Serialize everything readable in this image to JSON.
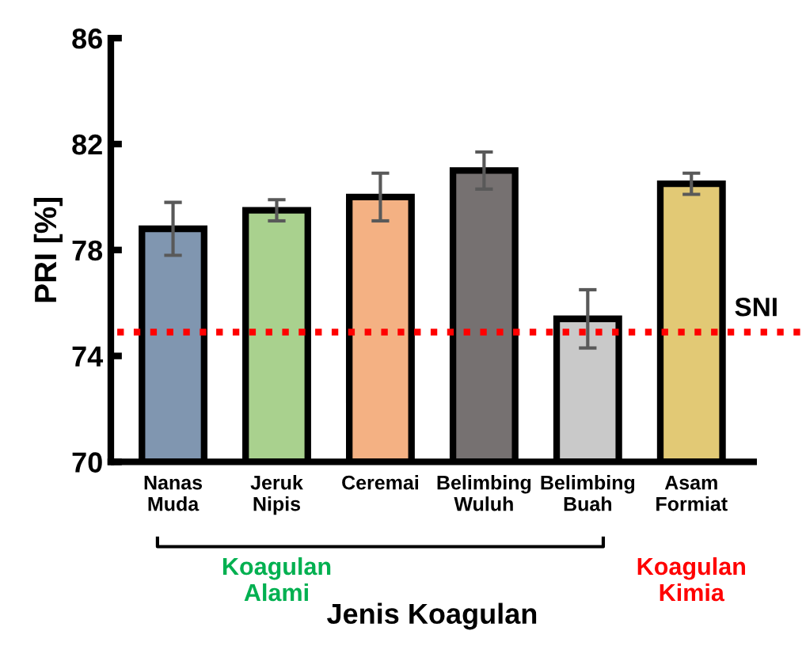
{
  "chart_data": {
    "type": "bar",
    "ylabel": "PRI [%]",
    "xlabel": "Jenis Koagulan",
    "categories": [
      "Nanas\nMuda",
      "Jeruk\nNipis",
      "Ceremai",
      "Belimbing\nWuluh",
      "Belimbing\nBuah",
      "Asam\nFormiat"
    ],
    "values": [
      78.8,
      79.5,
      80.0,
      81.0,
      75.4,
      80.5
    ],
    "errors": [
      1.0,
      0.4,
      0.9,
      0.7,
      1.1,
      0.4
    ],
    "colors": [
      "#8096b0",
      "#a9d18e",
      "#f4b183",
      "#767171",
      "#c9c9c9",
      "#e2c975"
    ],
    "ylim": [
      70,
      86
    ],
    "yticks": [
      70,
      74,
      78,
      82,
      86
    ],
    "ref_lines": [
      {
        "axis": "y",
        "value": 74.9,
        "label": "SNI",
        "color": "#ff0000",
        "line_style": "dotted"
      }
    ],
    "annotations": [
      "Koagulan\nAlami",
      "Koagulan\nKimia"
    ],
    "grid": false
  }
}
